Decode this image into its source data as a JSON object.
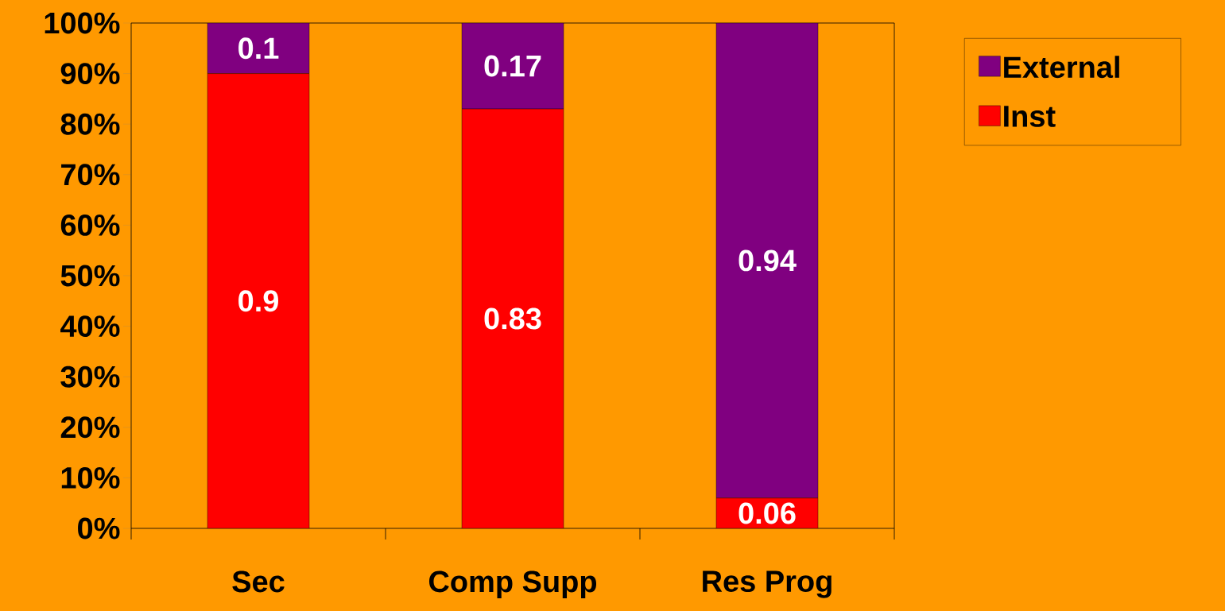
{
  "chart_data": {
    "type": "bar",
    "stacked": true,
    "categories": [
      "Sec",
      "Comp Supp",
      "Res Prog"
    ],
    "series": [
      {
        "name": "Inst",
        "color": "#ff0000",
        "values": [
          0.9,
          0.83,
          0.06
        ]
      },
      {
        "name": "External",
        "color": "#800080",
        "values": [
          0.1,
          0.17,
          0.94
        ]
      }
    ],
    "ylim": [
      0,
      1
    ],
    "yticks": [
      {
        "value": 0,
        "label": "0%"
      },
      {
        "value": 0.1,
        "label": "10%"
      },
      {
        "value": 0.2,
        "label": "20%"
      },
      {
        "value": 0.3,
        "label": "30%"
      },
      {
        "value": 0.4,
        "label": "40%"
      },
      {
        "value": 0.5,
        "label": "50%"
      },
      {
        "value": 0.6,
        "label": "60%"
      },
      {
        "value": 0.7,
        "label": "70%"
      },
      {
        "value": 0.8,
        "label": "80%"
      },
      {
        "value": 0.9,
        "label": "90%"
      },
      {
        "value": 1,
        "label": "100%"
      }
    ],
    "data_labels": true,
    "legend": "top right"
  }
}
